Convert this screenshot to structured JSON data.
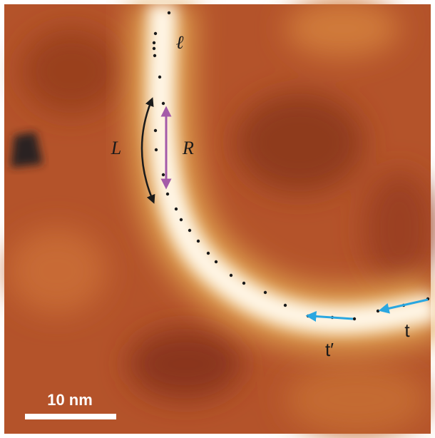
{
  "labels": {
    "ell": "ℓ",
    "L": "L",
    "R": "R",
    "t_prime": "t′",
    "t": "t"
  },
  "scale_bar": {
    "label": "10 nm"
  }
}
